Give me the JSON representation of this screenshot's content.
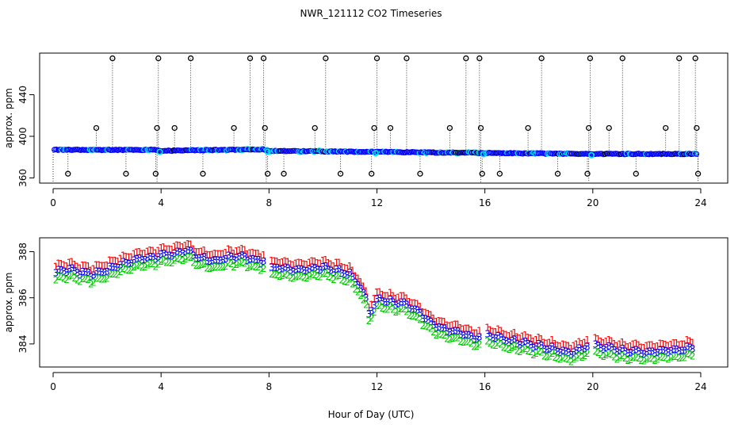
{
  "colors": {
    "black": "#000000",
    "cyan": "#00e5ee",
    "blue": "#0000ff",
    "red": "#ff0000",
    "green": "#00cc00"
  },
  "chart_data": [
    {
      "id": "top",
      "type": "scatter",
      "title": "NWR_121112  CO2 Timeseries",
      "xlabel": "",
      "ylabel": "approx. ppm",
      "xlim": [
        -0.5,
        25
      ],
      "ylim": [
        355,
        480
      ],
      "xticks": [
        0,
        4,
        8,
        12,
        16,
        20,
        24
      ],
      "yticks": [
        360,
        400,
        440
      ],
      "grid": false,
      "description": "Dense series near 384-388 ppm with outlier spikes (dotted drop lines) to ~475, ~408 and ~364",
      "baseline_levels": [
        [
          0,
          387
        ],
        [
          3.8,
          387
        ],
        [
          4.0,
          386
        ],
        [
          7.8,
          387.5
        ],
        [
          8.0,
          386
        ],
        [
          11.8,
          385
        ],
        [
          12,
          385
        ],
        [
          16,
          384
        ],
        [
          19.8,
          383
        ],
        [
          20,
          383
        ],
        [
          24,
          383
        ]
      ],
      "spike_high": [
        2.2,
        3.9,
        5.1,
        7.3,
        7.8,
        10.1,
        12.0,
        13.1,
        15.3,
        15.8,
        18.1,
        19.9,
        21.1,
        23.2,
        23.8
      ],
      "spike_high_value": 475,
      "spike_mid": [
        1.6,
        3.85,
        4.5,
        6.7,
        7.85,
        9.7,
        11.9,
        12.5,
        14.7,
        15.85,
        17.6,
        19.85,
        20.6,
        22.7,
        23.85
      ],
      "spike_mid_value": 408,
      "spike_low": [
        0.55,
        2.7,
        3.8,
        5.55,
        7.95,
        8.55,
        10.65,
        11.8,
        13.6,
        15.9,
        16.55,
        18.7,
        19.8,
        21.6,
        23.9
      ],
      "spike_low_value": 364
    },
    {
      "id": "bottom",
      "type": "scatter",
      "title": "",
      "xlabel": "Hour of Day (UTC)",
      "ylabel": "approx. ppm",
      "xlim": [
        -0.5,
        25
      ],
      "ylim": [
        383.0,
        388.6
      ],
      "xticks": [
        0,
        4,
        8,
        12,
        16,
        20,
        24
      ],
      "yticks": [
        384,
        386,
        388
      ],
      "grid": false,
      "series": [
        {
          "name": "1",
          "offset": 0.28,
          "color": "#ff0000"
        },
        {
          "name": "3",
          "offset": 0.0,
          "color": "#0000ff"
        },
        {
          "name": "2",
          "offset": -0.3,
          "color": "#00cc00"
        }
      ],
      "trend_knots": [
        [
          0.1,
          387.1
        ],
        [
          0.5,
          387.2
        ],
        [
          1.0,
          387.1
        ],
        [
          1.5,
          387.0
        ],
        [
          2.0,
          387.2
        ],
        [
          2.5,
          387.4
        ],
        [
          3.0,
          387.6
        ],
        [
          3.5,
          387.7
        ],
        [
          4.0,
          387.8
        ],
        [
          4.5,
          387.9
        ],
        [
          5.0,
          388.0
        ],
        [
          5.5,
          387.7
        ],
        [
          6.0,
          387.6
        ],
        [
          6.5,
          387.7
        ],
        [
          7.0,
          387.8
        ],
        [
          7.5,
          387.6
        ],
        [
          7.8,
          387.6
        ],
        [
          8.0,
          387.3
        ],
        [
          9.0,
          387.2
        ],
        [
          10.0,
          387.3
        ],
        [
          11.0,
          387.0
        ],
        [
          11.3,
          386.6
        ],
        [
          11.6,
          385.9
        ],
        [
          11.7,
          385.3
        ],
        [
          12.0,
          385.9
        ],
        [
          13.0,
          385.7
        ],
        [
          13.5,
          385.4
        ],
        [
          14.0,
          384.9
        ],
        [
          14.5,
          384.6
        ],
        [
          15.0,
          384.5
        ],
        [
          15.5,
          384.3
        ],
        [
          15.8,
          384.2
        ],
        [
          16.0,
          384.4
        ],
        [
          17.0,
          384.1
        ],
        [
          18.0,
          383.9
        ],
        [
          19.0,
          383.6
        ],
        [
          19.5,
          383.7
        ],
        [
          19.8,
          383.9
        ],
        [
          20.0,
          383.9
        ],
        [
          21.0,
          383.7
        ],
        [
          22.0,
          383.6
        ],
        [
          23.0,
          383.7
        ],
        [
          23.8,
          383.8
        ]
      ],
      "gaps": [
        [
          7.85,
          8.02
        ],
        [
          15.85,
          16.02
        ],
        [
          19.85,
          20.05
        ]
      ]
    }
  ]
}
